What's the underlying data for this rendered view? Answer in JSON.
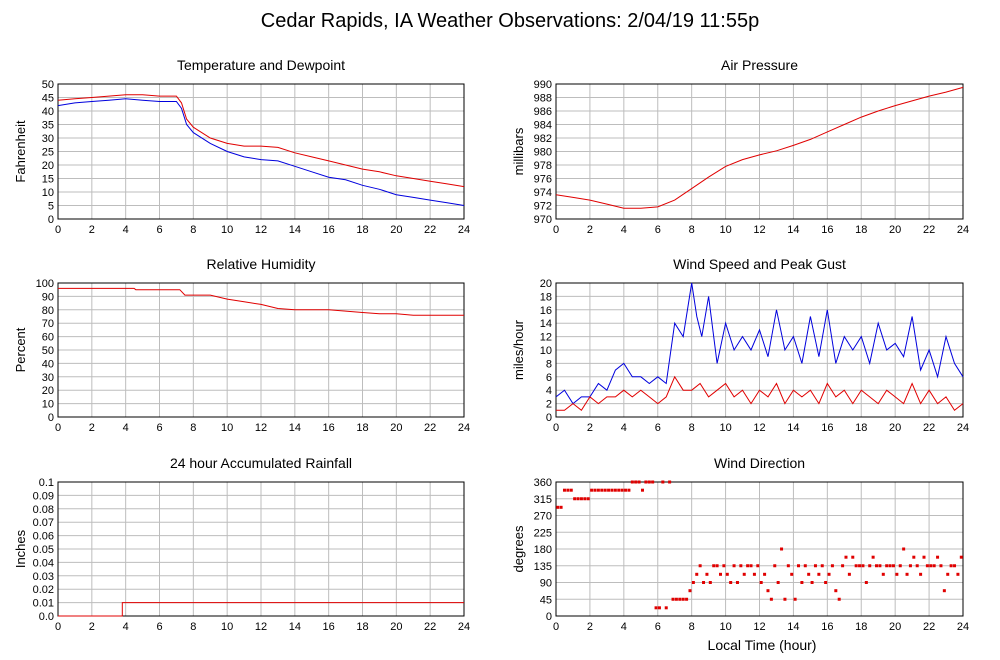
{
  "title": "Cedar Rapids, IA Weather Observations: 2/04/19 11:55p",
  "xlabel": "Local Time (hour)",
  "colors": {
    "red": "#e00000",
    "blue": "#0000dd",
    "grid": "#bdbdbd"
  },
  "chart_data": [
    {
      "type": "line",
      "title": "Temperature and Dewpoint",
      "ylabel": "Fahrenheit",
      "xlim": [
        0,
        24
      ],
      "ylim": [
        0,
        50
      ],
      "x_ticks": [
        0,
        2,
        4,
        6,
        8,
        10,
        12,
        14,
        16,
        18,
        20,
        22,
        24
      ],
      "y_ticks": [
        0,
        5,
        10,
        15,
        20,
        25,
        30,
        35,
        40,
        45,
        50
      ],
      "series": [
        {
          "color": "red",
          "x": [
            0,
            1,
            2,
            3,
            4,
            5,
            6,
            7,
            7.3,
            7.6,
            8,
            9,
            10,
            11,
            12,
            13,
            14,
            15,
            16,
            17,
            18,
            19,
            20,
            21,
            22,
            23,
            24
          ],
          "values": [
            44,
            44.5,
            45,
            45.5,
            46,
            46,
            45.5,
            45.5,
            43,
            37,
            34,
            30,
            28,
            27,
            27,
            26.5,
            24.5,
            23,
            21.5,
            20,
            18.5,
            17.5,
            16,
            15,
            14,
            13,
            12
          ]
        },
        {
          "color": "blue",
          "x": [
            0,
            1,
            2,
            3,
            4,
            5,
            6,
            7,
            7.3,
            7.6,
            8,
            9,
            10,
            11,
            12,
            13,
            14,
            15,
            16,
            17,
            18,
            19,
            20,
            21,
            22,
            23,
            24
          ],
          "values": [
            42,
            43,
            43.5,
            44,
            44.5,
            44,
            43.5,
            43.5,
            41,
            35,
            32,
            28,
            25,
            23,
            22,
            21.5,
            19.5,
            17.5,
            15.5,
            14.5,
            12.5,
            11,
            9,
            8,
            7,
            6,
            5
          ]
        }
      ]
    },
    {
      "type": "line",
      "title": "Air Pressure",
      "ylabel": "millibars",
      "xlim": [
        0,
        24
      ],
      "ylim": [
        970,
        990
      ],
      "x_ticks": [
        0,
        2,
        4,
        6,
        8,
        10,
        12,
        14,
        16,
        18,
        20,
        22,
        24
      ],
      "y_ticks": [
        970,
        972,
        974,
        976,
        978,
        980,
        982,
        984,
        986,
        988,
        990
      ],
      "series": [
        {
          "color": "red",
          "x": [
            0,
            1,
            2,
            3,
            4,
            5,
            6,
            7,
            8,
            9,
            10,
            11,
            12,
            13,
            14,
            15,
            16,
            17,
            18,
            19,
            20,
            21,
            22,
            23,
            24
          ],
          "values": [
            973.6,
            973.2,
            972.8,
            972.2,
            971.6,
            971.6,
            971.8,
            972.8,
            974.5,
            976.2,
            977.8,
            978.8,
            979.5,
            980.1,
            980.9,
            981.8,
            982.9,
            984.0,
            985.1,
            986.0,
            986.8,
            987.5,
            988.2,
            988.8,
            989.5
          ]
        }
      ]
    },
    {
      "type": "line",
      "title": "Relative Humidity",
      "ylabel": "Percent",
      "xlim": [
        0,
        24
      ],
      "ylim": [
        0,
        100
      ],
      "x_ticks": [
        0,
        2,
        4,
        6,
        8,
        10,
        12,
        14,
        16,
        18,
        20,
        22,
        24
      ],
      "y_ticks": [
        0,
        10,
        20,
        30,
        40,
        50,
        60,
        70,
        80,
        90,
        100
      ],
      "series": [
        {
          "color": "red",
          "x": [
            0,
            4.5,
            4.6,
            7.2,
            7.5,
            8,
            9,
            10,
            11,
            12,
            13,
            14,
            15,
            16,
            17,
            18,
            19,
            20,
            21,
            22,
            23,
            24
          ],
          "values": [
            96,
            96,
            95,
            95,
            91,
            91,
            91,
            88,
            86,
            84,
            81,
            80,
            80,
            80,
            79,
            78,
            77,
            77,
            76,
            76,
            76,
            76
          ]
        }
      ]
    },
    {
      "type": "line",
      "title": "Wind Speed and Peak Gust",
      "ylabel": "miles/hour",
      "xlim": [
        0,
        24
      ],
      "ylim": [
        0,
        20
      ],
      "x_ticks": [
        0,
        2,
        4,
        6,
        8,
        10,
        12,
        14,
        16,
        18,
        20,
        22,
        24
      ],
      "y_ticks": [
        0,
        2,
        4,
        6,
        8,
        10,
        12,
        14,
        16,
        18,
        20
      ],
      "series": [
        {
          "color": "blue",
          "x": [
            0,
            0.5,
            1,
            1.5,
            2,
            2.5,
            3,
            3.5,
            4,
            4.5,
            5,
            5.5,
            6,
            6.5,
            7,
            7.5,
            8,
            8.3,
            8.6,
            9,
            9.5,
            10,
            10.5,
            11,
            11.5,
            12,
            12.5,
            13,
            13.5,
            14,
            14.5,
            15,
            15.5,
            16,
            16.5,
            17,
            17.5,
            18,
            18.5,
            19,
            19.5,
            20,
            20.5,
            21,
            21.5,
            22,
            22.5,
            23,
            23.5,
            24
          ],
          "values": [
            3,
            4,
            2,
            3,
            3,
            5,
            4,
            7,
            8,
            6,
            6,
            5,
            6,
            5,
            14,
            12,
            20,
            15,
            12,
            18,
            8,
            14,
            10,
            12,
            10,
            13,
            9,
            16,
            10,
            12,
            8,
            15,
            9,
            16,
            8,
            12,
            10,
            12,
            8,
            14,
            10,
            11,
            9,
            15,
            7,
            10,
            6,
            12,
            8,
            6
          ]
        },
        {
          "color": "red",
          "x": [
            0,
            0.5,
            1,
            1.5,
            2,
            2.5,
            3,
            3.5,
            4,
            4.5,
            5,
            5.5,
            6,
            6.5,
            7,
            7.5,
            8,
            8.5,
            9,
            9.5,
            10,
            10.5,
            11,
            11.5,
            12,
            12.5,
            13,
            13.5,
            14,
            14.5,
            15,
            15.5,
            16,
            16.5,
            17,
            17.5,
            18,
            18.5,
            19,
            19.5,
            20,
            20.5,
            21,
            21.5,
            22,
            22.5,
            23,
            23.5,
            24
          ],
          "values": [
            1,
            1,
            2,
            1,
            3,
            2,
            3,
            3,
            4,
            3,
            4,
            3,
            2,
            3,
            6,
            4,
            4,
            5,
            3,
            4,
            5,
            3,
            4,
            2,
            4,
            3,
            5,
            2,
            4,
            3,
            4,
            2,
            5,
            3,
            4,
            2,
            4,
            3,
            2,
            4,
            3,
            2,
            5,
            2,
            4,
            2,
            3,
            1,
            2
          ]
        }
      ]
    },
    {
      "type": "line",
      "title": "24 hour Accumulated Rainfall",
      "ylabel": "Inches",
      "xlim": [
        0,
        24
      ],
      "ylim": [
        0,
        0.1
      ],
      "x_ticks": [
        0,
        2,
        4,
        6,
        8,
        10,
        12,
        14,
        16,
        18,
        20,
        22,
        24
      ],
      "y_ticks": [
        "0.0",
        "0.01",
        "0.02",
        "0.03",
        "0.04",
        "0.05",
        "0.06",
        "0.07",
        "0.08",
        "0.09",
        "0.1"
      ],
      "series": [
        {
          "color": "red",
          "x": [
            0,
            3.8,
            3.8,
            24
          ],
          "values": [
            0,
            0,
            0.01,
            0.01
          ]
        }
      ]
    },
    {
      "type": "scatter",
      "title": "Wind Direction",
      "ylabel": "degrees",
      "xlim": [
        0,
        24
      ],
      "ylim": [
        0,
        360
      ],
      "x_ticks": [
        0,
        2,
        4,
        6,
        8,
        10,
        12,
        14,
        16,
        18,
        20,
        22,
        24
      ],
      "y_ticks": [
        0,
        45,
        90,
        135,
        180,
        225,
        270,
        315,
        360
      ],
      "series": [
        {
          "color": "red",
          "x": [
            0.1,
            0.3,
            0.5,
            0.7,
            0.9,
            1.1,
            1.3,
            1.5,
            1.7,
            1.9,
            2.1,
            2.3,
            2.5,
            2.7,
            2.9,
            3.1,
            3.3,
            3.5,
            3.7,
            3.9,
            4.1,
            4.3,
            4.5,
            4.7,
            4.9,
            5.1,
            5.3,
            5.5,
            5.7,
            5.9,
            6.1,
            6.3,
            6.5,
            6.7,
            6.9,
            7.1,
            7.3,
            7.5,
            7.7,
            7.9,
            8.1,
            8.3,
            8.5,
            8.7,
            8.9,
            9.1,
            9.3,
            9.5,
            9.7,
            9.9,
            10.1,
            10.3,
            10.5,
            10.7,
            10.9,
            11.1,
            11.3,
            11.5,
            11.7,
            11.9,
            12.1,
            12.3,
            12.5,
            12.7,
            12.9,
            13.1,
            13.3,
            13.5,
            13.7,
            13.9,
            14.1,
            14.3,
            14.5,
            14.7,
            14.9,
            15.1,
            15.3,
            15.5,
            15.7,
            15.9,
            16.1,
            16.3,
            16.5,
            16.7,
            16.9,
            17.1,
            17.3,
            17.5,
            17.7,
            17.9,
            18.1,
            18.3,
            18.5,
            18.7,
            18.9,
            19.1,
            19.3,
            19.5,
            19.7,
            19.9,
            20.1,
            20.3,
            20.5,
            20.7,
            20.9,
            21.1,
            21.3,
            21.5,
            21.7,
            21.9,
            22.1,
            22.3,
            22.5,
            22.7,
            22.9,
            23.1,
            23.3,
            23.5,
            23.7,
            23.9
          ],
          "values": [
            292,
            292,
            338,
            338,
            338,
            315,
            315,
            315,
            315,
            315,
            338,
            338,
            338,
            338,
            338,
            338,
            338,
            338,
            338,
            338,
            338,
            338,
            360,
            360,
            360,
            338,
            360,
            360,
            360,
            22,
            22,
            360,
            22,
            360,
            45,
            45,
            45,
            45,
            45,
            68,
            90,
            112,
            135,
            90,
            112,
            90,
            135,
            135,
            112,
            135,
            112,
            90,
            135,
            90,
            135,
            112,
            135,
            135,
            112,
            135,
            90,
            112,
            68,
            45,
            135,
            90,
            180,
            45,
            135,
            112,
            45,
            135,
            90,
            135,
            112,
            90,
            135,
            112,
            135,
            90,
            112,
            135,
            68,
            45,
            135,
            158,
            112,
            158,
            135,
            135,
            135,
            90,
            135,
            158,
            135,
            135,
            112,
            135,
            135,
            135,
            112,
            135,
            180,
            112,
            135,
            158,
            135,
            112,
            158,
            135,
            135,
            135,
            158,
            135,
            68,
            112,
            135,
            135,
            112,
            158
          ]
        }
      ]
    }
  ]
}
